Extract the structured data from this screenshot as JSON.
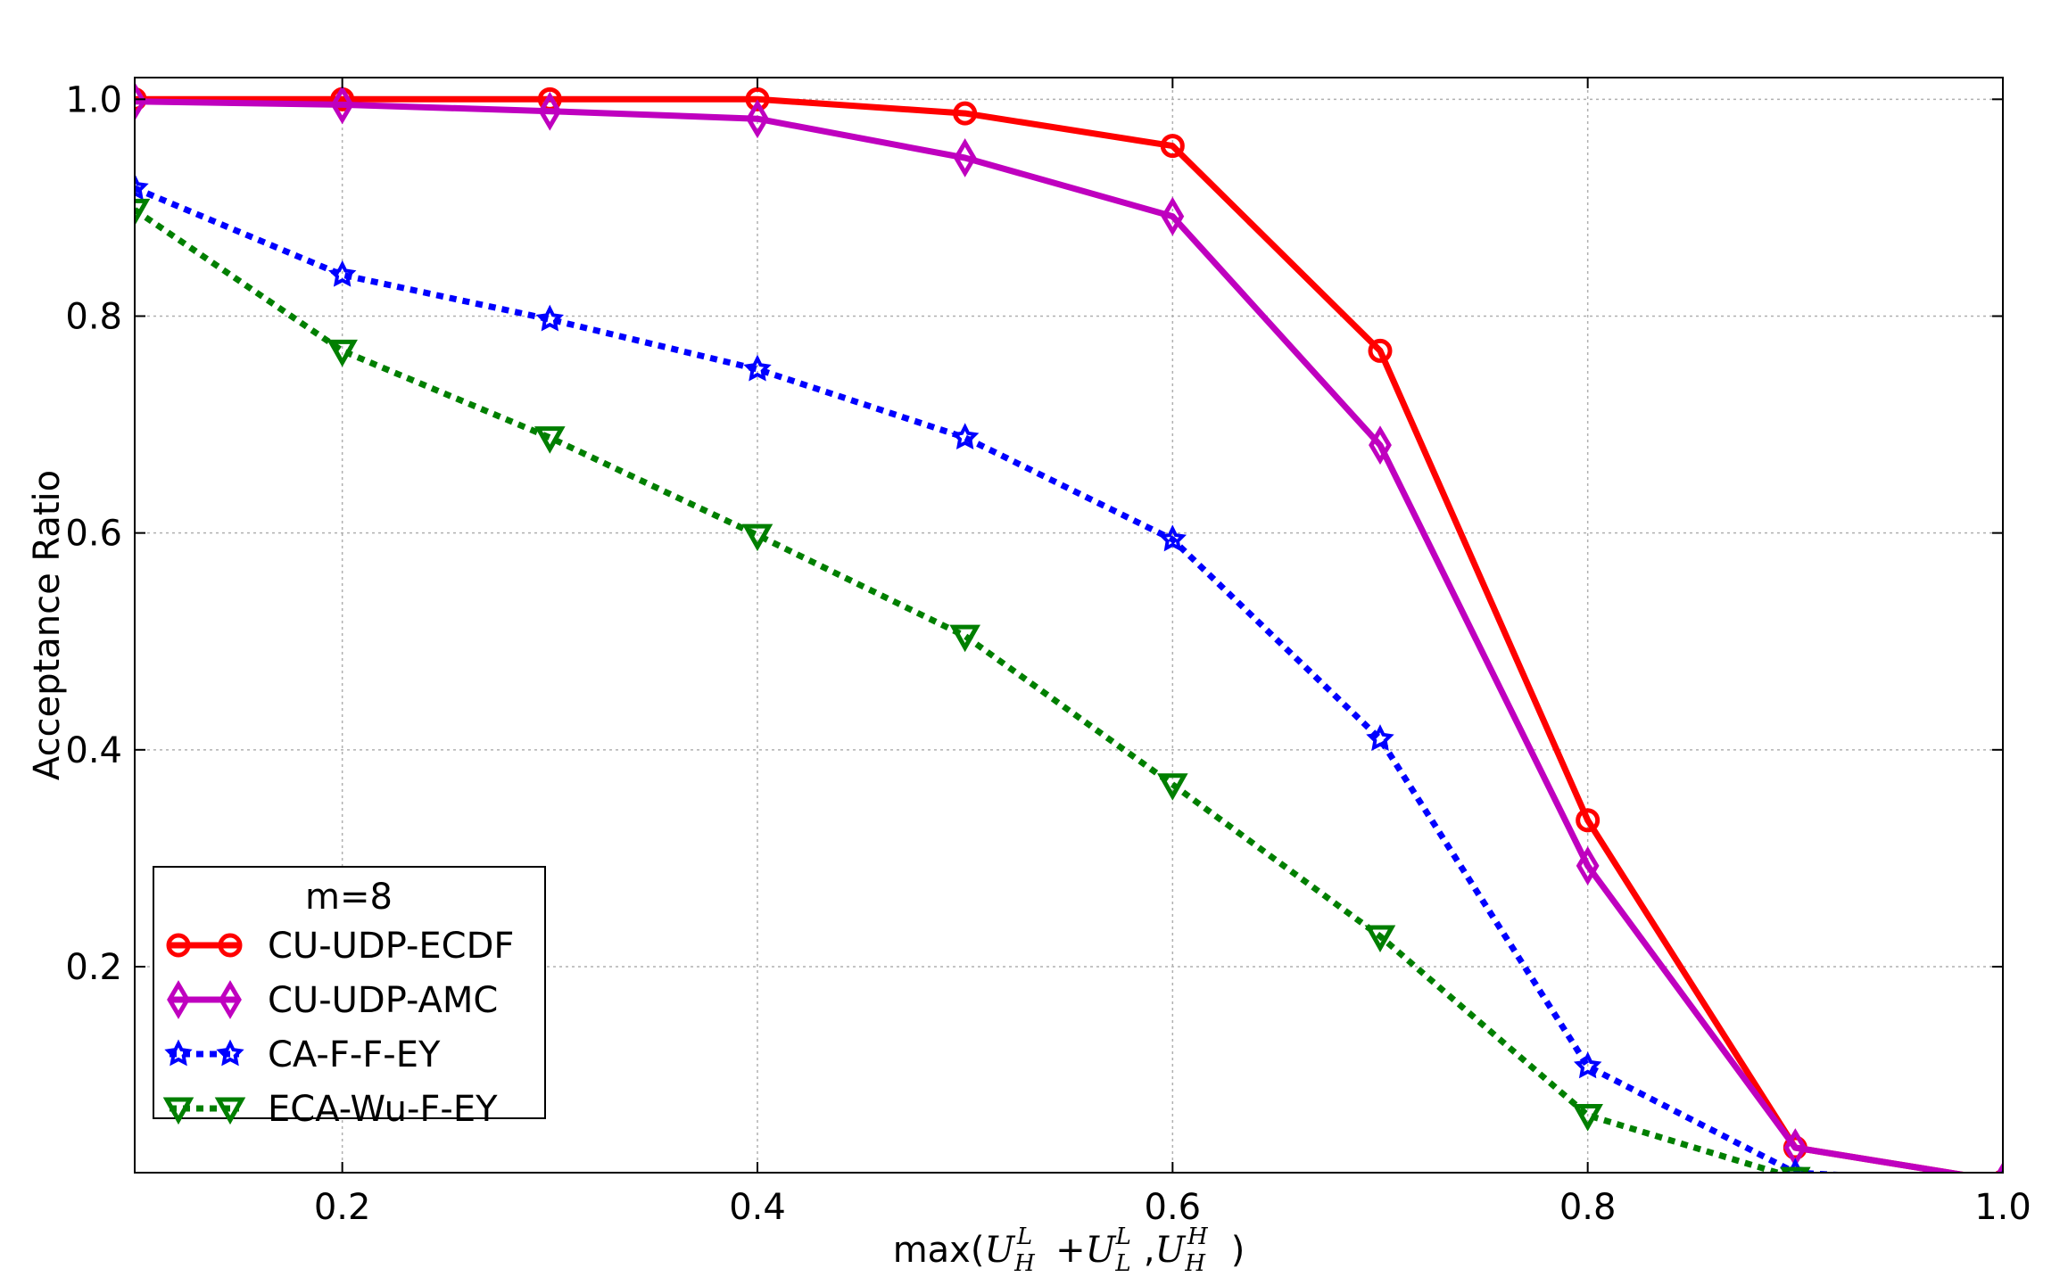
{
  "chart_data": {
    "type": "line",
    "title": "",
    "xlabel": {
      "func": "max(",
      "t1": "U",
      "t1_sub": "H",
      "t1_sup": "L",
      "plus": "+",
      "t2": "U",
      "t2_sub": "L",
      "t2_sup": "L",
      "comma": ",",
      "t3": "U",
      "t3_sub": "H",
      "t3_sup": "H",
      "close": ")"
    },
    "ylabel": "Acceptance Ratio",
    "xlim": [
      0.1,
      1.0
    ],
    "ylim": [
      0.01,
      1.02
    ],
    "xticks": [
      {
        "value": 0.2,
        "label": "0.2"
      },
      {
        "value": 0.4,
        "label": "0.4"
      },
      {
        "value": 0.6,
        "label": "0.6"
      },
      {
        "value": 0.8,
        "label": "0.8"
      },
      {
        "value": 1.0,
        "label": "1.0"
      }
    ],
    "yticks": [
      {
        "value": 0.2,
        "label": "0.2"
      },
      {
        "value": 0.4,
        "label": "0.4"
      },
      {
        "value": 0.6,
        "label": "0.6"
      },
      {
        "value": 0.8,
        "label": "0.8"
      },
      {
        "value": 1.0,
        "label": "1.0"
      }
    ],
    "grid": true,
    "x": [
      0.1,
      0.2,
      0.3,
      0.4,
      0.5,
      0.6,
      0.7,
      0.8,
      0.9,
      1.0
    ],
    "legend": {
      "title": "m=8",
      "placement": "lower-left"
    },
    "series": [
      {
        "name": "CU-UDP-ECDF",
        "color": "#ff0000",
        "linestyle": "solid",
        "marker": "circle",
        "values": [
          1.0,
          1.0,
          1.0,
          1.0,
          0.987,
          0.957,
          0.768,
          0.335,
          0.033,
          0.002
        ]
      },
      {
        "name": "CU-UDP-AMC",
        "color": "#bf00bf",
        "linestyle": "solid",
        "marker": "thin-diamond",
        "values": [
          0.998,
          0.995,
          0.989,
          0.982,
          0.946,
          0.892,
          0.681,
          0.293,
          0.033,
          0.002
        ]
      },
      {
        "name": "CA-F-F-EY",
        "color": "#0000ff",
        "linestyle": "dotted",
        "marker": "star",
        "values": [
          0.918,
          0.838,
          0.797,
          0.751,
          0.688,
          0.594,
          0.41,
          0.108,
          0.01,
          0.0
        ]
      },
      {
        "name": "ECA-Wu-F-EY",
        "color": "#007f00",
        "linestyle": "dotted",
        "marker": "triangle-down",
        "values": [
          0.898,
          0.768,
          0.688,
          0.598,
          0.505,
          0.368,
          0.228,
          0.063,
          0.005,
          0.0
        ]
      }
    ]
  }
}
